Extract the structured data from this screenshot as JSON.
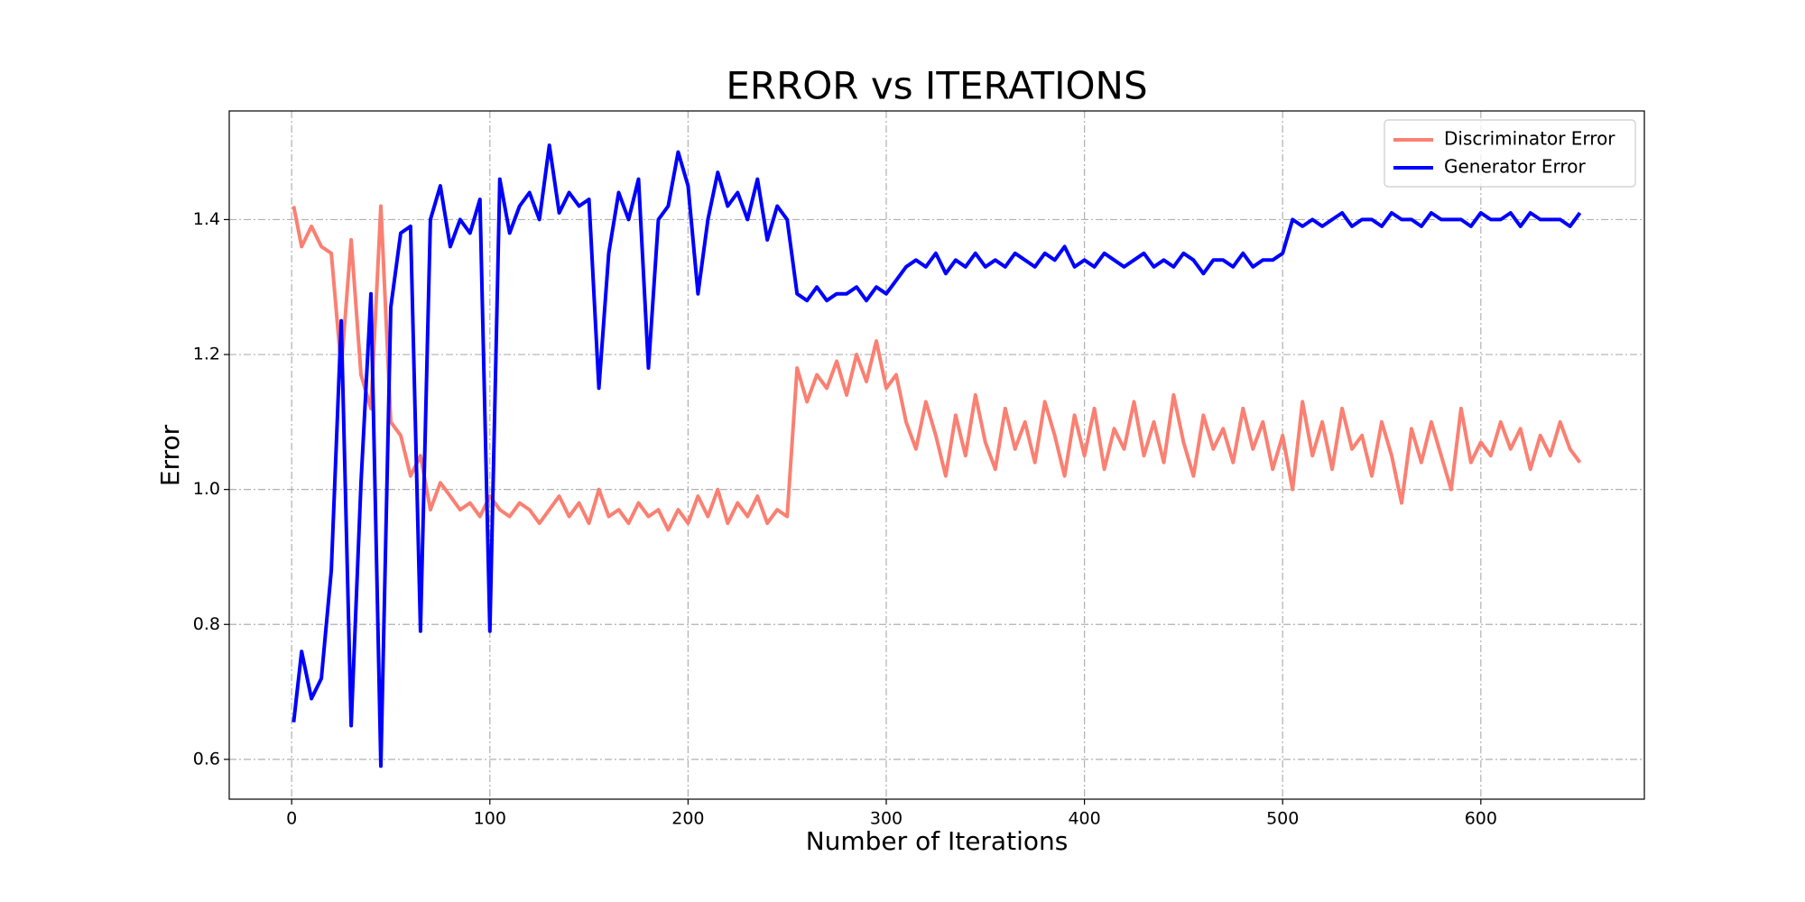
{
  "chart_data": {
    "type": "line",
    "title": "ERROR vs ITERATIONS",
    "x_label": "Number of Iterations",
    "y_label": "Error",
    "x": [
      1,
      5,
      10,
      15,
      20,
      25,
      30,
      35,
      40,
      45,
      50,
      55,
      60,
      65,
      70,
      75,
      80,
      85,
      90,
      95,
      100,
      105,
      110,
      115,
      120,
      125,
      130,
      135,
      140,
      145,
      150,
      155,
      160,
      165,
      170,
      175,
      180,
      185,
      190,
      195,
      200,
      205,
      210,
      215,
      220,
      225,
      230,
      235,
      240,
      245,
      250,
      255,
      260,
      265,
      270,
      275,
      280,
      285,
      290,
      295,
      300,
      305,
      310,
      315,
      320,
      325,
      330,
      335,
      340,
      345,
      350,
      355,
      360,
      365,
      370,
      375,
      380,
      385,
      390,
      395,
      400,
      405,
      410,
      415,
      420,
      425,
      430,
      435,
      440,
      445,
      450,
      455,
      460,
      465,
      470,
      475,
      480,
      485,
      490,
      495,
      500,
      505,
      510,
      515,
      520,
      525,
      530,
      535,
      540,
      545,
      550,
      555,
      560,
      565,
      570,
      575,
      580,
      585,
      590,
      595,
      600,
      605,
      610,
      615,
      620,
      625,
      630,
      635,
      640,
      645,
      650
    ],
    "series": [
      {
        "name": "Discriminator Error",
        "color": "#fa8072",
        "values": [
          1.42,
          1.36,
          1.39,
          1.36,
          1.35,
          1.18,
          1.37,
          1.17,
          1.12,
          1.42,
          1.1,
          1.08,
          1.02,
          1.05,
          0.97,
          1.01,
          0.99,
          0.97,
          0.98,
          0.96,
          0.99,
          0.97,
          0.96,
          0.98,
          0.97,
          0.95,
          0.97,
          0.99,
          0.96,
          0.98,
          0.95,
          1.0,
          0.96,
          0.97,
          0.95,
          0.98,
          0.96,
          0.97,
          0.94,
          0.97,
          0.95,
          0.99,
          0.96,
          1.0,
          0.95,
          0.98,
          0.96,
          0.99,
          0.95,
          0.97,
          0.96,
          1.18,
          1.13,
          1.17,
          1.15,
          1.19,
          1.14,
          1.2,
          1.16,
          1.22,
          1.15,
          1.17,
          1.1,
          1.06,
          1.13,
          1.08,
          1.02,
          1.11,
          1.05,
          1.14,
          1.07,
          1.03,
          1.12,
          1.06,
          1.1,
          1.04,
          1.13,
          1.08,
          1.02,
          1.11,
          1.05,
          1.12,
          1.03,
          1.09,
          1.06,
          1.13,
          1.05,
          1.1,
          1.04,
          1.14,
          1.07,
          1.02,
          1.11,
          1.06,
          1.09,
          1.04,
          1.12,
          1.06,
          1.1,
          1.03,
          1.08,
          1.0,
          1.13,
          1.05,
          1.1,
          1.03,
          1.12,
          1.06,
          1.08,
          1.02,
          1.1,
          1.05,
          0.98,
          1.09,
          1.04,
          1.1,
          1.05,
          1.0,
          1.12,
          1.04,
          1.07,
          1.05,
          1.1,
          1.06,
          1.09,
          1.03,
          1.08,
          1.05,
          1.1,
          1.06,
          1.04
        ]
      },
      {
        "name": "Generator Error",
        "color": "#0000ff",
        "values": [
          0.655,
          0.76,
          0.69,
          0.72,
          0.88,
          1.25,
          0.65,
          1.01,
          1.29,
          0.59,
          1.27,
          1.38,
          1.39,
          0.79,
          1.4,
          1.45,
          1.36,
          1.4,
          1.38,
          1.43,
          0.79,
          1.46,
          1.38,
          1.42,
          1.44,
          1.4,
          1.51,
          1.41,
          1.44,
          1.42,
          1.43,
          1.15,
          1.35,
          1.44,
          1.4,
          1.46,
          1.18,
          1.4,
          1.42,
          1.5,
          1.45,
          1.29,
          1.4,
          1.47,
          1.42,
          1.44,
          1.4,
          1.46,
          1.37,
          1.42,
          1.4,
          1.29,
          1.28,
          1.3,
          1.28,
          1.29,
          1.29,
          1.3,
          1.28,
          1.3,
          1.29,
          1.31,
          1.33,
          1.34,
          1.33,
          1.35,
          1.32,
          1.34,
          1.33,
          1.35,
          1.33,
          1.34,
          1.33,
          1.35,
          1.34,
          1.33,
          1.35,
          1.34,
          1.36,
          1.33,
          1.34,
          1.33,
          1.35,
          1.34,
          1.33,
          1.34,
          1.35,
          1.33,
          1.34,
          1.33,
          1.35,
          1.34,
          1.32,
          1.34,
          1.34,
          1.33,
          1.35,
          1.33,
          1.34,
          1.34,
          1.35,
          1.4,
          1.39,
          1.4,
          1.39,
          1.4,
          1.41,
          1.39,
          1.4,
          1.4,
          1.39,
          1.41,
          1.4,
          1.4,
          1.39,
          1.41,
          1.4,
          1.4,
          1.4,
          1.39,
          1.41,
          1.4,
          1.4,
          1.41,
          1.39,
          1.41,
          1.4,
          1.4,
          1.4,
          1.39,
          1.41
        ]
      }
    ],
    "xlim": [
      -31.5,
      682.5
    ],
    "ylim": [
      0.541,
      1.561
    ],
    "xticks": [
      0,
      100,
      200,
      300,
      400,
      500,
      600
    ],
    "yticks": [
      0.6,
      0.8,
      {
        "value": 1,
        "label": "1.0"
      },
      1.2,
      1.4
    ],
    "grid": true,
    "legend": "upper right"
  }
}
